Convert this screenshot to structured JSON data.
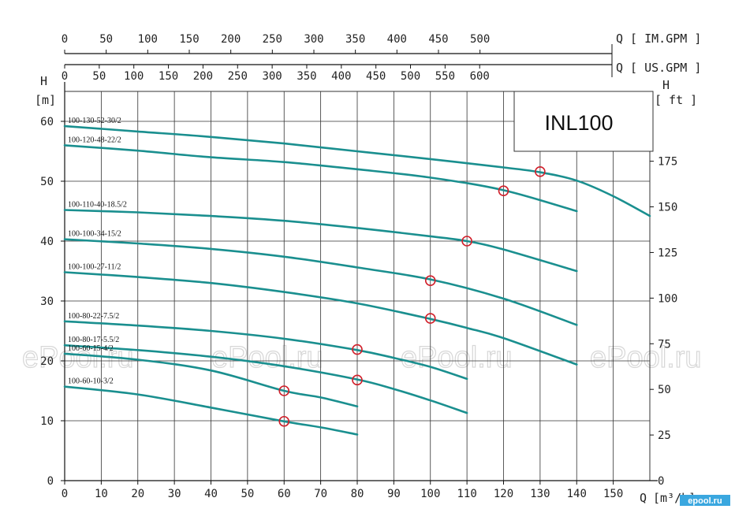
{
  "chart_data": {
    "type": "line",
    "model": "INL100",
    "x_label": "Q [m³/h]",
    "y_label_left": "H [m]",
    "y_label_right": "H [ ft ]",
    "top_axis_label": "Q [ IM.GPM ]",
    "second_axis_label": "Q [ US.GPM ]",
    "x_ticks": [
      0,
      10,
      20,
      30,
      40,
      50,
      60,
      70,
      80,
      90,
      100,
      110,
      120,
      130,
      140,
      150
    ],
    "y_ticks_left": [
      0,
      10,
      20,
      30,
      40,
      50,
      60
    ],
    "y_ticks_right": [
      0,
      25,
      50,
      75,
      100,
      125,
      150,
      175
    ],
    "im_gpm_ticks": [
      0,
      50,
      100,
      150,
      200,
      250,
      300,
      350,
      400,
      450,
      500
    ],
    "us_gpm_ticks": [
      0,
      50,
      100,
      150,
      200,
      250,
      300,
      350,
      400,
      450,
      500,
      550,
      600
    ],
    "xlim": [
      0,
      160
    ],
    "ylim": [
      0,
      65
    ],
    "grid": true,
    "series": [
      {
        "name": "100-130-52-30/2",
        "x": [
          0,
          20,
          40,
          60,
          80,
          100,
          120,
          130,
          140,
          150,
          160
        ],
        "y": [
          59.2,
          58.3,
          57.4,
          56.3,
          55.0,
          53.7,
          52.3,
          51.5,
          50.1,
          47.5,
          44.2
        ],
        "duty_point": [
          130,
          51.6
        ]
      },
      {
        "name": "100-120-48-22/2",
        "x": [
          0,
          20,
          40,
          60,
          80,
          100,
          120,
          140
        ],
        "y": [
          56.0,
          55.1,
          54.0,
          53.2,
          52.0,
          50.6,
          48.5,
          45.0
        ],
        "duty_point": [
          120,
          48.4
        ]
      },
      {
        "name": "100-110-40-18.5/2",
        "x": [
          0,
          20,
          40,
          60,
          80,
          100,
          110,
          120,
          140
        ],
        "y": [
          45.2,
          44.8,
          44.2,
          43.4,
          42.2,
          40.8,
          40.0,
          38.6,
          35.0
        ],
        "duty_point": [
          110,
          40.0
        ]
      },
      {
        "name": "100-100-34-15/2",
        "x": [
          0,
          20,
          40,
          60,
          80,
          100,
          120,
          140
        ],
        "y": [
          40.3,
          39.6,
          38.7,
          37.4,
          35.6,
          33.6,
          30.4,
          26.0
        ],
        "duty_point": [
          100,
          33.4
        ]
      },
      {
        "name": "100-100-27-11/2",
        "x": [
          0,
          20,
          40,
          60,
          80,
          100,
          110,
          120,
          140
        ],
        "y": [
          34.8,
          34.0,
          33.0,
          31.5,
          29.6,
          27.0,
          25.5,
          23.8,
          19.4
        ],
        "duty_point": [
          100,
          27.1
        ]
      },
      {
        "name": "100-80-22-7.5/2",
        "x": [
          0,
          20,
          40,
          60,
          80,
          90,
          100,
          110
        ],
        "y": [
          26.6,
          25.9,
          25.0,
          23.7,
          21.8,
          20.5,
          19.0,
          17.0
        ],
        "duty_point": [
          80,
          21.9
        ]
      },
      {
        "name": "100-80-17-5.5/2",
        "x": [
          0,
          20,
          40,
          60,
          80,
          90,
          100,
          110
        ],
        "y": [
          22.6,
          21.8,
          20.7,
          19.1,
          16.9,
          15.3,
          13.4,
          11.3
        ],
        "duty_point": [
          80,
          16.8
        ]
      },
      {
        "name": "100-60-15-4/2",
        "x": [
          0,
          20,
          40,
          60,
          70,
          80
        ],
        "y": [
          21.2,
          20.2,
          18.4,
          15.0,
          13.9,
          12.4
        ],
        "duty_point": [
          60,
          15.0
        ]
      },
      {
        "name": "100-60-10-3/2",
        "x": [
          0,
          20,
          40,
          60,
          70,
          80
        ],
        "y": [
          15.7,
          14.4,
          12.2,
          9.9,
          8.9,
          7.7
        ],
        "duty_point": [
          60,
          9.9
        ]
      }
    ],
    "watermark": "ePool.ru",
    "corner_logo": "epool.ru"
  }
}
